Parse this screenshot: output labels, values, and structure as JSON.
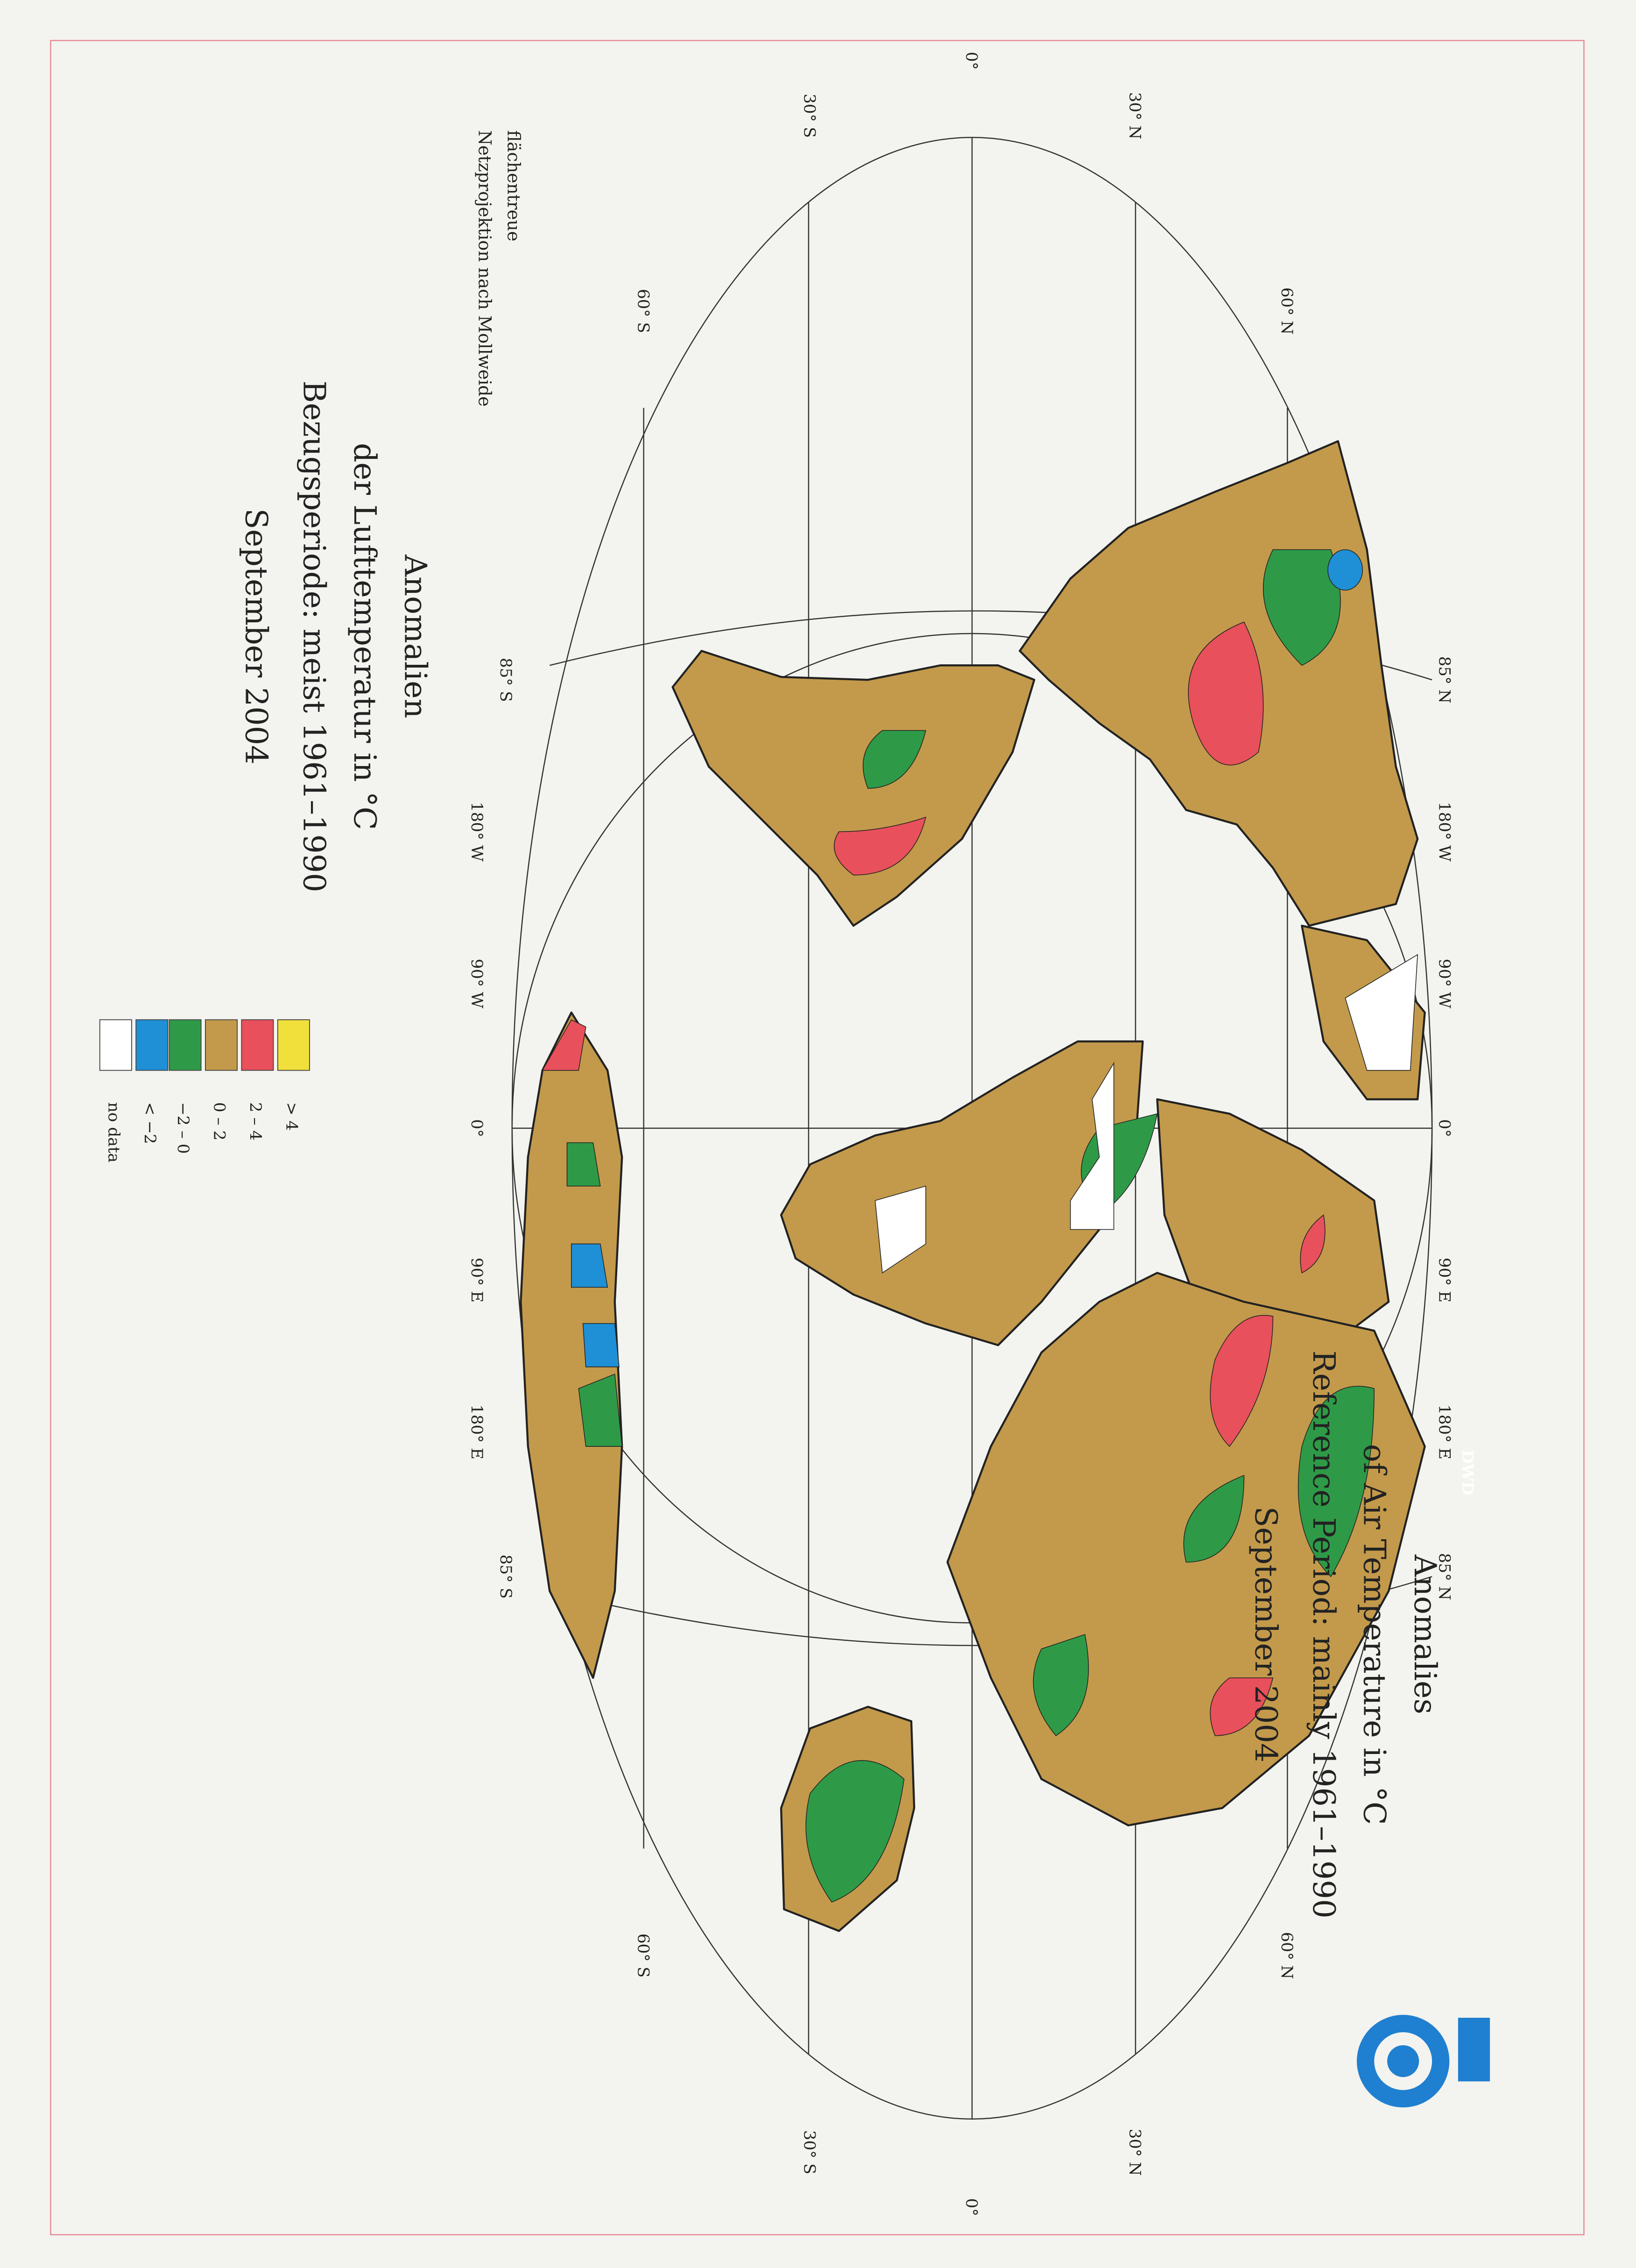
{
  "title_de": [
    "Anomalien",
    "der Lufttemperatur in °C",
    "Bezugsperiode: meist 1961–1990",
    "September 2004"
  ],
  "title_en": [
    "Anomalies",
    "of Air Temperature in °C",
    "Reference Period: mainly 1961–1990",
    "September 2004"
  ],
  "projection_note": [
    "flächentreue",
    "Netzprojektion nach Mollweide"
  ],
  "latitude_labels": [
    "0°",
    "30° N",
    "30° S",
    "60° N",
    "60° S"
  ],
  "longitude_labels_top": [
    "85° N",
    "180° W",
    "90° W",
    "0°",
    "90° E",
    "180° E",
    "85° N"
  ],
  "longitude_labels_bottom": [
    "85° S",
    "180° W",
    "90° W",
    "0°",
    "90° E",
    "180° E",
    "85° S"
  ],
  "legend": [
    {
      "label": ">    4",
      "color": "#f1e03c"
    },
    {
      "label": "2  –  4",
      "color": "#e8505b"
    },
    {
      "label": "0  –  2",
      "color": "#c39a4b"
    },
    {
      "label": "−2  –  0",
      "color": "#2e9a48"
    },
    {
      "label": "<    −2",
      "color": "#1f8fd6"
    },
    {
      "label": "no data",
      "color": "#ffffff"
    }
  ],
  "logo": "DWD"
}
